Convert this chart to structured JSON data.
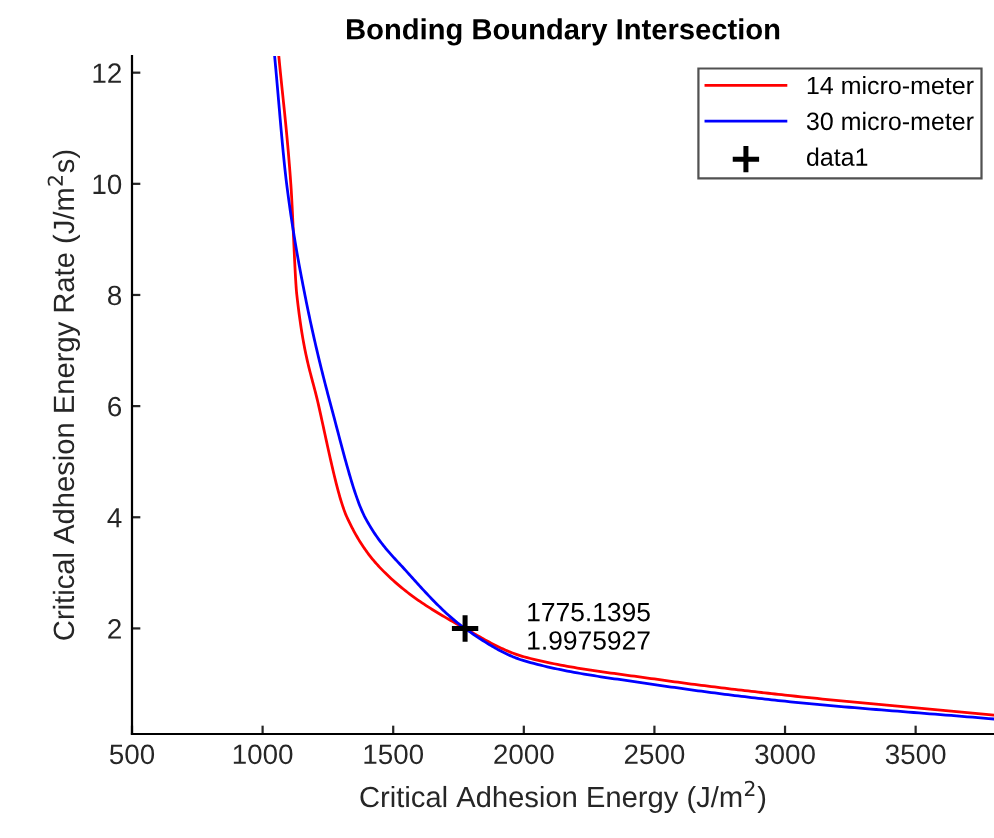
{
  "chart_data": {
    "type": "line",
    "title": "Bonding Boundary Intersection",
    "xlabel": "Critical Adhesion Energy (J/m$^{2}$)",
    "ylabel": "Critical Adhesion Energy Rate (J/m$^{2}$s)",
    "series": [
      {
        "name": "14 micro-meter",
        "color": "#ff0000",
        "x": [
          1062,
          1108,
          1131,
          1215,
          1323,
          1469,
          1775.1395,
          2000,
          2500,
          3000,
          3800
        ],
        "values": [
          12.3,
          10,
          8,
          6,
          4,
          3,
          1.9975927,
          1.49,
          1.09,
          0.8,
          0.44
        ]
      },
      {
        "name": "30 micro-meter",
        "color": "#0000ff",
        "x": [
          1046,
          1092,
          1162,
          1262,
          1392,
          1556,
          1775.1395,
          2000,
          2500,
          3000,
          3800
        ],
        "values": [
          12.3,
          10,
          8,
          6,
          4,
          3,
          1.9975927,
          1.42,
          0.99,
          0.69,
          0.37
        ]
      },
      {
        "name": "data1",
        "type": "scatter",
        "color": "#000000",
        "marker": "cross",
        "x": [
          1775.1395
        ],
        "values": [
          1.9975927
        ]
      }
    ],
    "annotations": [
      {
        "text": "1775.1395\n1.9975927",
        "x": 1775.1395,
        "y": 1.9975927
      }
    ],
    "xlim": [
      500,
      3800
    ],
    "ylim": [
      0.1,
      12.3
    ],
    "xticks": [
      500,
      1000,
      1500,
      2000,
      2500,
      3000,
      3500
    ],
    "yticks": [
      2,
      4,
      6,
      8,
      10,
      12
    ],
    "legend": "top right",
    "grid": false
  }
}
